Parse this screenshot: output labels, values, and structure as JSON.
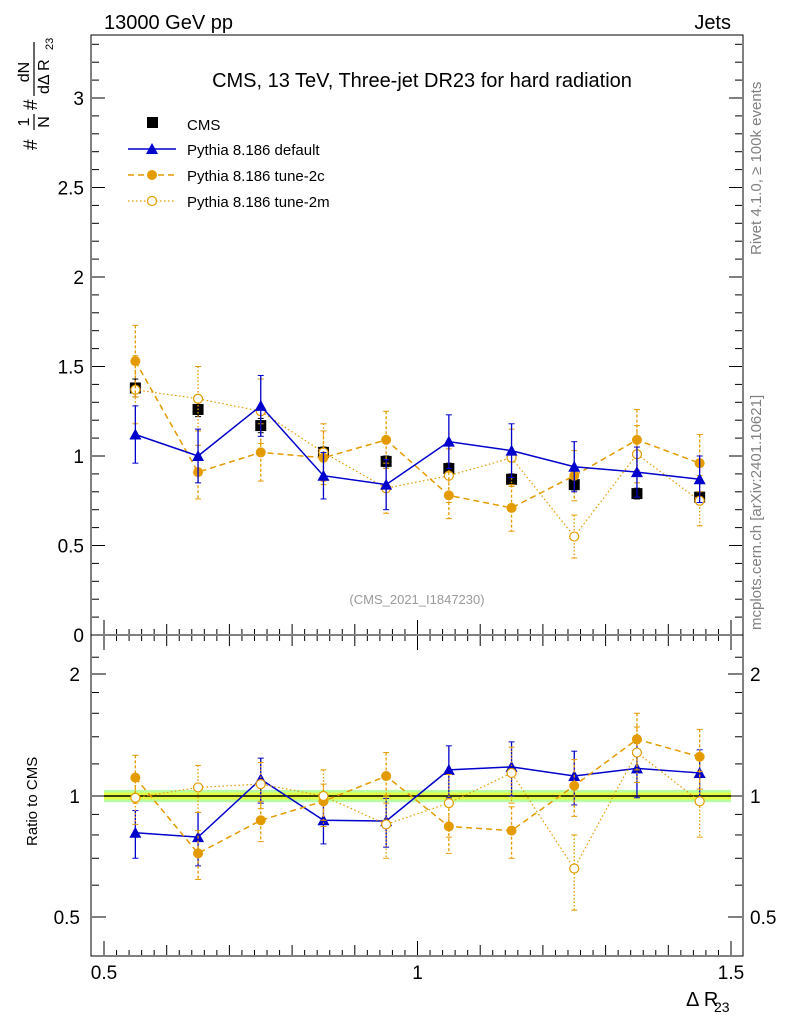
{
  "header": {
    "left": "13000 GeV pp",
    "right": "Jets"
  },
  "side_texts": {
    "rivet": "Rivet 4.1.0, ≥ 100k events",
    "site": "mcplots.cern.ch [arXiv:2401.10621]"
  },
  "colors": {
    "data": "#000000",
    "default": "#0000cc",
    "tune2c": "#e39b00",
    "band_inner": "#ffff00",
    "band_outer": "#7fff5a"
  },
  "chart_data": [
    {
      "type": "line",
      "panel": "main",
      "title": "CMS, 13 TeV, Three-jet DR23 for hard radiation",
      "watermark": "(CMS_2021_I1847230)",
      "xlabel": "Δ R",
      "xlabel_sub": "23",
      "ylabel": "#1/N #dN/dΔ R23",
      "ylabel_parts": [
        "#",
        "1",
        "N",
        "#",
        "dN",
        "dΔ R",
        "23"
      ],
      "xlim": [
        0.5,
        1.5
      ],
      "ylim": [
        0,
        3.3
      ],
      "yticks": [
        0,
        0.5,
        1,
        1.5,
        2,
        2.5,
        3
      ],
      "ytick_labels": [
        "0",
        "0.5",
        "1",
        "1.5",
        "2",
        "2.5",
        "3"
      ],
      "x": [
        0.55,
        0.65,
        0.75,
        0.85,
        0.95,
        1.05,
        1.15,
        1.25,
        1.35,
        1.45
      ],
      "legend": [
        "CMS",
        "Pythia 8.186 default",
        "Pythia 8.186 tune-2c",
        "Pythia 8.186 tune-2m"
      ],
      "series": [
        {
          "name": "CMS",
          "key": "data",
          "values": [
            1.38,
            1.26,
            1.17,
            1.02,
            0.97,
            0.93,
            0.87,
            0.84,
            0.79,
            0.77
          ],
          "errors": [
            0.05,
            0.04,
            0.04,
            0.03,
            0.03,
            0.03,
            0.03,
            0.03,
            0.03,
            0.03
          ]
        },
        {
          "name": "Pythia 8.186 default",
          "key": "default",
          "values": [
            1.12,
            1.0,
            1.28,
            0.89,
            0.84,
            1.08,
            1.03,
            0.94,
            0.91,
            0.87
          ],
          "errors": [
            0.16,
            0.15,
            0.17,
            0.13,
            0.14,
            0.15,
            0.15,
            0.14,
            0.14,
            0.13
          ]
        },
        {
          "name": "Pythia 8.186 tune-2c",
          "key": "tune2c",
          "values": [
            1.53,
            0.91,
            1.02,
            0.99,
            1.09,
            0.78,
            0.71,
            0.89,
            1.09,
            0.96
          ],
          "errors": [
            0.2,
            0.15,
            0.16,
            0.15,
            0.16,
            0.13,
            0.13,
            0.14,
            0.17,
            0.16
          ]
        },
        {
          "name": "Pythia 8.186 tune-2m",
          "key": "tune2m",
          "values": [
            1.37,
            1.32,
            1.25,
            1.02,
            0.82,
            0.89,
            0.99,
            0.55,
            1.01,
            0.75
          ],
          "errors": [
            0.19,
            0.18,
            0.18,
            0.16,
            0.14,
            0.15,
            0.16,
            0.12,
            0.16,
            0.14
          ]
        }
      ]
    },
    {
      "type": "line",
      "panel": "ratio",
      "ylabel": "Ratio to CMS",
      "xlabel": "Δ R",
      "xlabel_sub": "23",
      "xlim": [
        0.5,
        1.5
      ],
      "ylim": [
        0.4,
        2.4
      ],
      "ylog": true,
      "yticks": [
        0.5,
        1,
        2
      ],
      "ytick_labels": [
        "0.5",
        "1",
        "2"
      ],
      "xticks": [
        0.5,
        1,
        1.5
      ],
      "xtick_labels": [
        "0.5",
        "1",
        "1.5"
      ],
      "x": [
        0.55,
        0.65,
        0.75,
        0.85,
        0.95,
        1.05,
        1.15,
        1.25,
        1.35,
        1.45
      ],
      "band_inner": 0.02,
      "band_outer": 0.035,
      "series": [
        {
          "name": "Pythia 8.186 default",
          "key": "default",
          "values": [
            0.81,
            0.79,
            1.1,
            0.87,
            0.866,
            1.16,
            1.18,
            1.12,
            1.17,
            1.14
          ],
          "errors": [
            0.11,
            0.12,
            0.14,
            0.11,
            0.12,
            0.17,
            0.18,
            0.17,
            0.18,
            0.16
          ]
        },
        {
          "name": "Pythia 8.186 tune-2c",
          "key": "tune2c",
          "values": [
            1.11,
            0.72,
            0.87,
            0.97,
            1.12,
            0.84,
            0.82,
            1.06,
            1.38,
            1.25
          ],
          "errors": [
            0.15,
            0.1,
            0.1,
            0.1,
            0.16,
            0.12,
            0.12,
            0.17,
            0.22,
            0.21
          ]
        },
        {
          "name": "Pythia 8.186 tune-2m",
          "key": "tune2m",
          "values": [
            0.99,
            1.05,
            1.07,
            1.0,
            0.85,
            0.96,
            1.14,
            0.66,
            1.28,
            0.97
          ],
          "errors": [
            0.14,
            0.14,
            0.14,
            0.16,
            0.15,
            0.17,
            0.18,
            0.14,
            0.2,
            0.18
          ]
        }
      ]
    }
  ]
}
